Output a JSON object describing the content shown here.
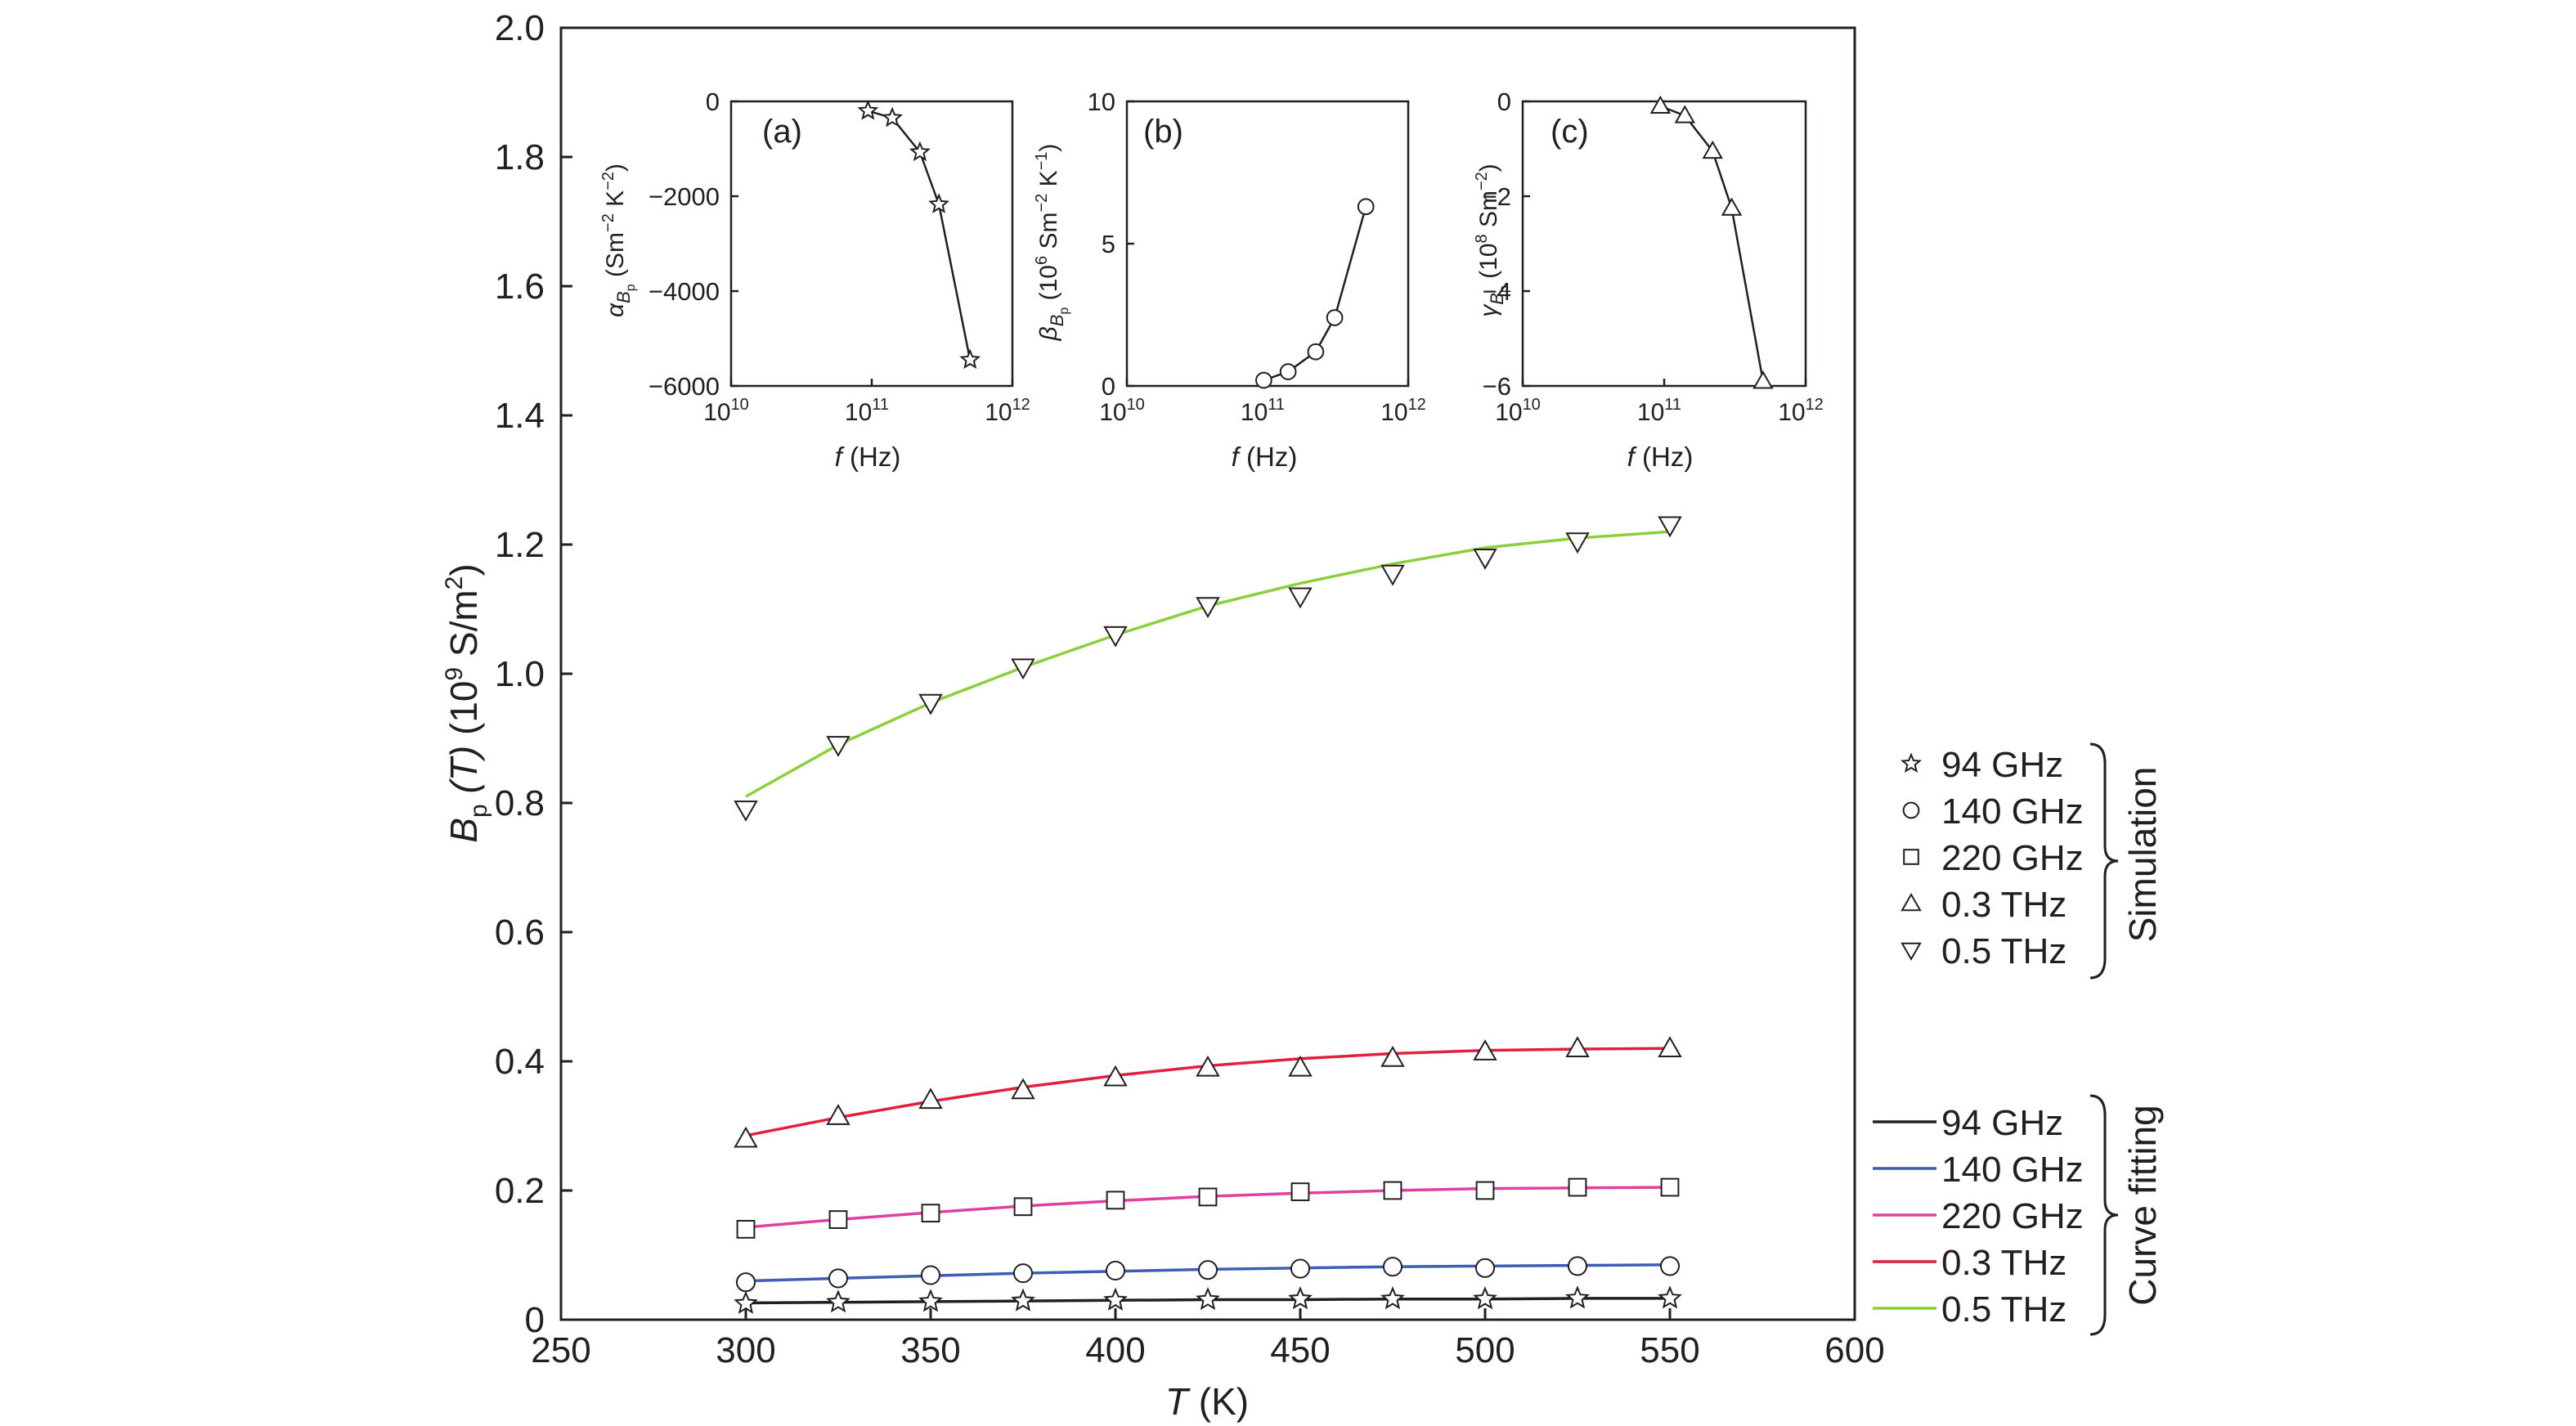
{
  "chart_data": [
    {
      "id": "main",
      "type": "line",
      "xlabel": {
        "var": "T",
        "unit": " (K)"
      },
      "ylabel": {
        "var": "B",
        "sub": "p",
        "arg": " (T)",
        "unit": " (10",
        "exp": "9",
        "unit2": " S/m",
        "exp2": "2",
        "close": ")"
      },
      "xlim": [
        250,
        600
      ],
      "ylim": [
        0,
        2.0
      ],
      "xticks": [
        250,
        300,
        350,
        400,
        450,
        500,
        550,
        600
      ],
      "yticks": [
        0,
        0.2,
        0.4,
        0.6,
        0.8,
        1.0,
        1.2,
        1.4,
        1.6,
        1.8,
        2.0
      ],
      "ytick_labels": [
        "0",
        "0.2",
        "0.4",
        "0.6",
        "0.8",
        "1.0",
        "1.2",
        "1.4",
        "1.6",
        "1.8",
        "2.0"
      ],
      "x": [
        300,
        325,
        350,
        375,
        400,
        425,
        450,
        475,
        500,
        525,
        550
      ],
      "series": [
        {
          "name": "94 GHz",
          "marker": "star",
          "color": "#231f20",
          "sim": [
            0.025,
            0.027,
            0.028,
            0.029,
            0.03,
            0.031,
            0.032,
            0.032,
            0.032,
            0.033,
            0.033
          ],
          "fit": [
            0.026,
            0.027,
            0.028,
            0.029,
            0.03,
            0.031,
            0.031,
            0.032,
            0.032,
            0.033,
            0.033
          ]
        },
        {
          "name": "140 GHz",
          "marker": "circle",
          "color": "#3f5db5",
          "sim": [
            0.058,
            0.064,
            0.069,
            0.072,
            0.076,
            0.077,
            0.079,
            0.082,
            0.08,
            0.083,
            0.083
          ],
          "fit": [
            0.06,
            0.064,
            0.068,
            0.072,
            0.075,
            0.078,
            0.08,
            0.082,
            0.083,
            0.084,
            0.085
          ]
        },
        {
          "name": "220 GHz",
          "marker": "square",
          "color": "#e040a0",
          "sim": [
            0.14,
            0.155,
            0.165,
            0.175,
            0.185,
            0.19,
            0.198,
            0.2,
            0.2,
            0.205,
            0.205
          ],
          "fit": [
            0.143,
            0.155,
            0.166,
            0.176,
            0.184,
            0.191,
            0.196,
            0.2,
            0.203,
            0.204,
            0.205
          ]
        },
        {
          "name": "0.3 THz",
          "marker": "triangle-up",
          "color": "#e0203c",
          "sim": [
            0.28,
            0.315,
            0.34,
            0.355,
            0.375,
            0.39,
            0.39,
            0.405,
            0.415,
            0.42,
            0.42
          ],
          "fit": [
            0.285,
            0.313,
            0.338,
            0.36,
            0.378,
            0.393,
            0.404,
            0.412,
            0.417,
            0.419,
            0.42
          ]
        },
        {
          "name": "0.5 THz",
          "marker": "triangle-down",
          "color": "#8ccf3c",
          "sim": [
            0.79,
            0.89,
            0.955,
            1.01,
            1.06,
            1.105,
            1.12,
            1.155,
            1.18,
            1.205,
            1.23
          ],
          "fit": [
            0.81,
            0.89,
            0.955,
            1.01,
            1.06,
            1.105,
            1.14,
            1.17,
            1.195,
            1.21,
            1.22
          ]
        }
      ],
      "legend": {
        "simulation_label": "Simulation",
        "fitting_label": "Curve fitting",
        "placement": "right"
      }
    },
    {
      "id": "inset-a",
      "type": "line",
      "panel_label": "(a)",
      "xlabel": {
        "var": "f",
        "unit": " (Hz)"
      },
      "ylabel": {
        "var": "α",
        "sub": "B",
        "subsub": "p",
        "unit": " (Sm",
        "exp": "−2",
        "unit2": " K",
        "exp2": "−2",
        "close": ")"
      },
      "xlog": [
        10,
        12
      ],
      "xticks": [
        {
          "base": "10",
          "exp": "10"
        },
        {
          "base": "10",
          "exp": "11"
        },
        {
          "base": "10",
          "exp": "12"
        }
      ],
      "ylim": [
        -6000,
        0
      ],
      "yticks": [
        0,
        -2000,
        -4000,
        -6000
      ],
      "ytick_labels": [
        "0",
        "−2000",
        "−4000",
        "−6000"
      ],
      "marker": "star",
      "f_hz": [
        94000000000,
        140000000000,
        220000000000,
        300000000000,
        500000000000
      ],
      "values": [
        -200,
        -350,
        -1070,
        -2170,
        -5450
      ]
    },
    {
      "id": "inset-b",
      "type": "line",
      "panel_label": "(b)",
      "xlabel": {
        "var": "f",
        "unit": " (Hz)"
      },
      "ylabel": {
        "var": "β",
        "sub": "B",
        "subsub": "p",
        "unit": " (10",
        "exp": "6",
        "unit2": " Sm",
        "exp2": "−2",
        "tail": " K",
        "exp3": "−1",
        "close": ")"
      },
      "xlog": [
        10,
        12
      ],
      "xticks": [
        {
          "base": "10",
          "exp": "10"
        },
        {
          "base": "10",
          "exp": "11"
        },
        {
          "base": "10",
          "exp": "12"
        }
      ],
      "ylim": [
        0,
        10
      ],
      "yticks": [
        0,
        5,
        10
      ],
      "ytick_labels": [
        "0",
        "5",
        "10"
      ],
      "marker": "circle",
      "f_hz": [
        94000000000,
        140000000000,
        220000000000,
        300000000000,
        500000000000
      ],
      "values": [
        0.2,
        0.5,
        1.2,
        2.4,
        6.3
      ]
    },
    {
      "id": "inset-c",
      "type": "line",
      "panel_label": "(c)",
      "xlabel": {
        "var": "f",
        "unit": " (Hz)"
      },
      "ylabel": {
        "var": "γ",
        "sub": "B",
        "subsub": "p",
        "unit": " (10",
        "exp": "8",
        "unit2": " Sm",
        "exp2": "−2",
        "close": ")"
      },
      "xlog": [
        10,
        12
      ],
      "xticks": [
        {
          "base": "10",
          "exp": "10"
        },
        {
          "base": "10",
          "exp": "11"
        },
        {
          "base": "10",
          "exp": "12"
        }
      ],
      "ylim": [
        -6,
        0
      ],
      "yticks": [
        0,
        -2,
        -4,
        -6
      ],
      "ytick_labels": [
        "0",
        "−2",
        "−4",
        "−6"
      ],
      "marker": "triangle-up",
      "f_hz": [
        94000000000,
        140000000000,
        220000000000,
        300000000000,
        500000000000
      ],
      "values": [
        -0.1,
        -0.3,
        -1.05,
        -2.25,
        -5.9
      ]
    }
  ]
}
